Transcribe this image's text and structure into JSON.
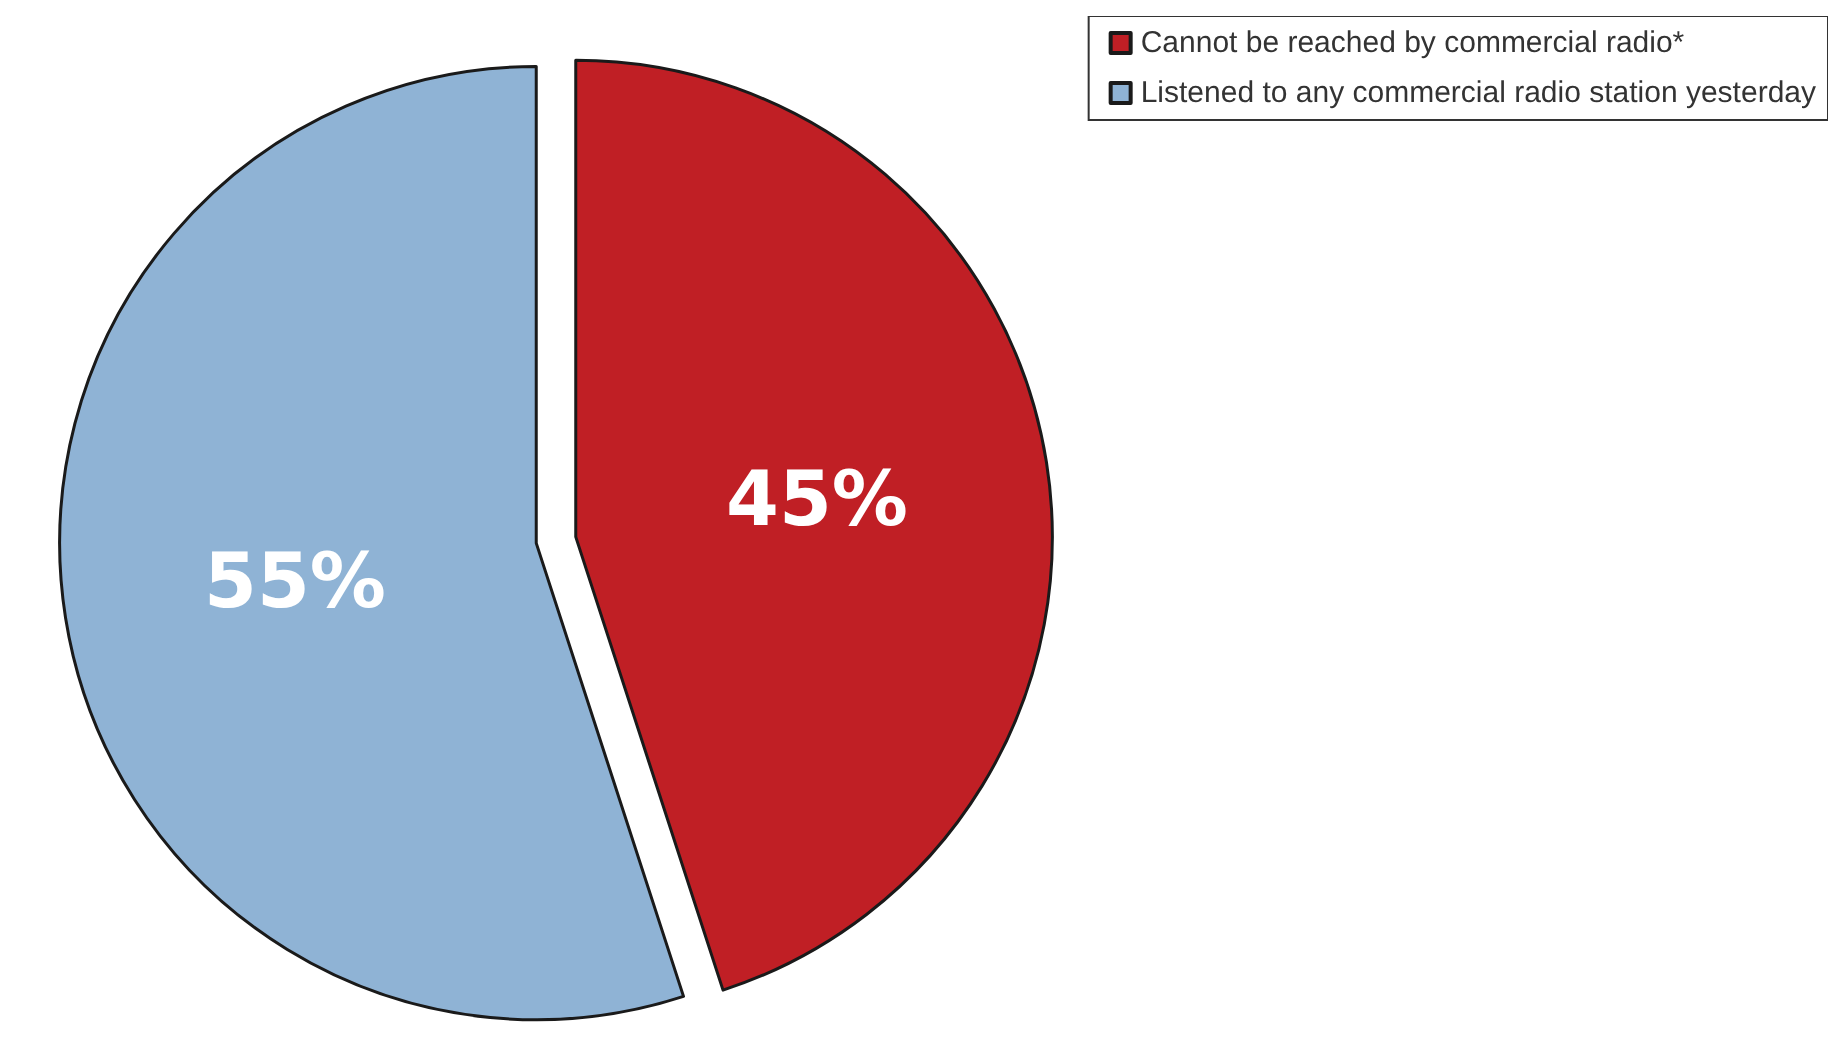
{
  "chart_data": {
    "type": "pie",
    "categories": [
      "Cannot be reached by commercial radio*",
      "Listened to any commercial radio station yesterday"
    ],
    "values": [
      45,
      55
    ],
    "colors": [
      "#c01f25",
      "#8fb3d5"
    ],
    "value_labels": [
      "45%",
      "55%"
    ],
    "legend": "top right"
  }
}
